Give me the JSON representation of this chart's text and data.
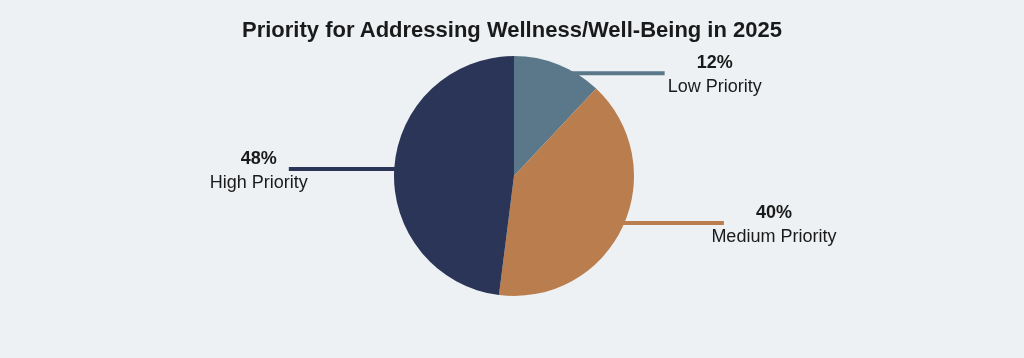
{
  "chart_data": {
    "type": "pie",
    "title": "Priority for Addressing Wellness/Well-Being in 2025",
    "categories": [
      "Low Priority",
      "Medium Priority",
      "High Priority"
    ],
    "values": [
      12,
      40,
      48
    ],
    "colors": [
      "#5a788a",
      "#b97d4e",
      "#2b3557"
    ],
    "value_labels": [
      "12%",
      "40%",
      "48%"
    ]
  }
}
